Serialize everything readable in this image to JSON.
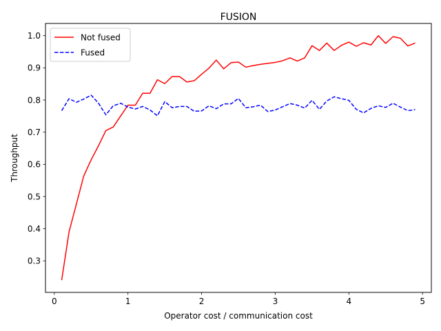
{
  "chart_data": {
    "type": "line",
    "title": "FUSION",
    "xlabel": "Operator cost / communication cost",
    "ylabel": "Throughput",
    "xlim": [
      -0.12,
      5.12
    ],
    "ylim": [
      0.202,
      1.038
    ],
    "xticks": [
      0,
      1,
      2,
      3,
      4,
      5
    ],
    "yticks": [
      0.3,
      0.4,
      0.5,
      0.6,
      0.7,
      0.8,
      0.9,
      1.0
    ],
    "xtick_labels": [
      "0",
      "1",
      "2",
      "3",
      "4",
      "5"
    ],
    "ytick_labels": [
      "0.3",
      "0.4",
      "0.5",
      "0.6",
      "0.7",
      "0.8",
      "0.9",
      "1.0"
    ],
    "grid": false,
    "legend_position": "top-left",
    "x": [
      0.1,
      0.2,
      0.3,
      0.4,
      0.5,
      0.6,
      0.7,
      0.8,
      0.9,
      1.0,
      1.1,
      1.2,
      1.3,
      1.4,
      1.5,
      1.6,
      1.7,
      1.8,
      1.9,
      2.0,
      2.1,
      2.2,
      2.3,
      2.4,
      2.5,
      2.6,
      2.7,
      2.8,
      2.9,
      3.0,
      3.1,
      3.2,
      3.3,
      3.4,
      3.5,
      3.6,
      3.7,
      3.8,
      3.9,
      4.0,
      4.1,
      4.2,
      4.3,
      4.4,
      4.5,
      4.6,
      4.7,
      4.8,
      4.9
    ],
    "series": [
      {
        "name": "Not fused",
        "color": "#ff0000",
        "style": "solid",
        "values": [
          0.24,
          0.39,
          0.477,
          0.564,
          0.614,
          0.658,
          0.705,
          0.716,
          0.75,
          0.784,
          0.784,
          0.821,
          0.821,
          0.863,
          0.851,
          0.873,
          0.873,
          0.856,
          0.86,
          0.88,
          0.899,
          0.924,
          0.897,
          0.916,
          0.918,
          0.902,
          0.907,
          0.911,
          0.914,
          0.917,
          0.922,
          0.931,
          0.921,
          0.931,
          0.969,
          0.954,
          0.977,
          0.954,
          0.97,
          0.98,
          0.967,
          0.978,
          0.971,
          1.0,
          0.976,
          0.997,
          0.992,
          0.968,
          0.977
        ]
      },
      {
        "name": "Fused",
        "color": "#0000ff",
        "style": "dashed",
        "values": [
          0.767,
          0.804,
          0.793,
          0.803,
          0.815,
          0.79,
          0.754,
          0.782,
          0.79,
          0.778,
          0.772,
          0.78,
          0.769,
          0.751,
          0.795,
          0.776,
          0.78,
          0.78,
          0.765,
          0.766,
          0.782,
          0.773,
          0.788,
          0.788,
          0.805,
          0.776,
          0.779,
          0.784,
          0.764,
          0.769,
          0.779,
          0.789,
          0.784,
          0.775,
          0.799,
          0.771,
          0.797,
          0.81,
          0.804,
          0.799,
          0.771,
          0.76,
          0.774,
          0.782,
          0.777,
          0.79,
          0.778,
          0.767,
          0.77
        ]
      }
    ]
  }
}
